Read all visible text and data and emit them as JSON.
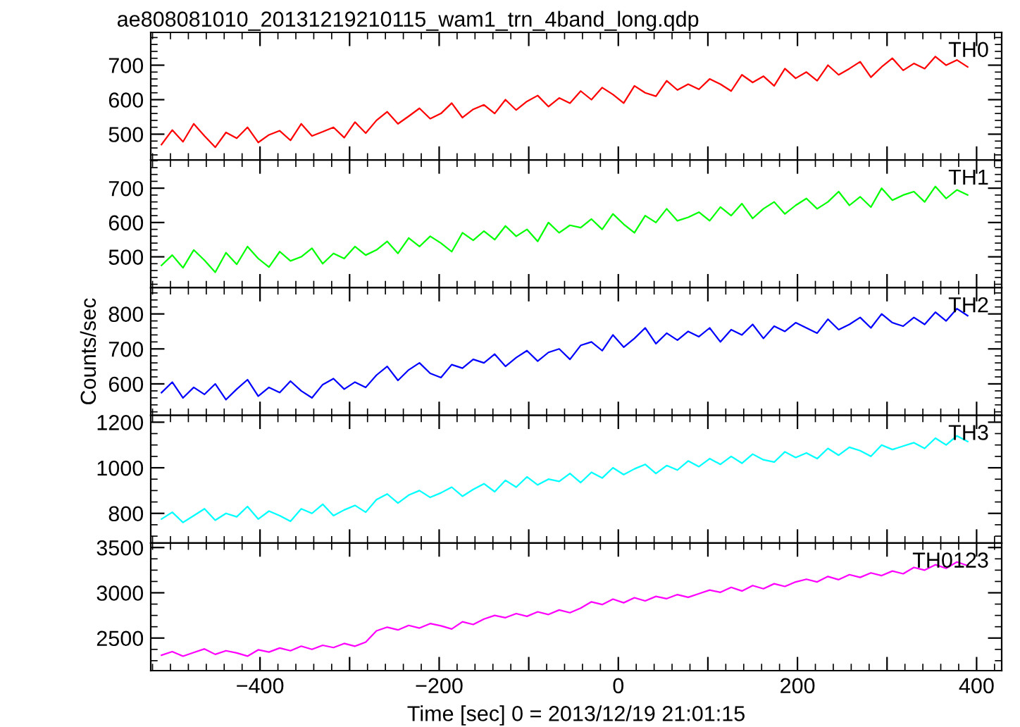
{
  "chart_data": [
    {
      "type": "line",
      "title": "ae808081010_20131219210115_wam1_trn_4band_long.qdp",
      "tick_labels": "y",
      "x": [
        -510,
        -498,
        -486,
        -474,
        -462,
        -450,
        -438,
        -426,
        -414,
        -402,
        -390,
        -378,
        -366,
        -354,
        -342,
        -330,
        -318,
        -306,
        -294,
        -282,
        -270,
        -258,
        -246,
        -234,
        -222,
        -210,
        -198,
        -186,
        -174,
        -162,
        -150,
        -138,
        -126,
        -114,
        -102,
        -90,
        -78,
        -66,
        -54,
        -42,
        -30,
        -18,
        -6,
        6,
        18,
        30,
        42,
        54,
        66,
        78,
        90,
        102,
        114,
        126,
        138,
        150,
        162,
        174,
        186,
        198,
        210,
        222,
        234,
        246,
        258,
        270,
        282,
        294,
        306,
        318,
        330,
        342,
        354,
        366,
        378,
        390
      ],
      "series": [
        {
          "name": "TH0",
          "color": "#ff0000",
          "values": [
            470,
            512,
            478,
            530,
            495,
            462,
            505,
            488,
            520,
            476,
            498,
            510,
            482,
            530,
            495,
            507,
            520,
            490,
            535,
            503,
            540,
            565,
            530,
            552,
            575,
            545,
            560,
            590,
            548,
            572,
            585,
            560,
            600,
            570,
            595,
            612,
            580,
            605,
            590,
            625,
            600,
            635,
            615,
            590,
            640,
            620,
            610,
            655,
            628,
            645,
            630,
            660,
            645,
            625,
            672,
            650,
            668,
            640,
            690,
            662,
            680,
            655,
            700,
            672,
            690,
            710,
            665,
            695,
            720,
            685,
            705,
            690,
            725,
            700,
            715,
            695
          ]
        }
      ],
      "xlim": [
        -522,
        428
      ],
      "xticks": [
        -400,
        {
          "value": -300,
          "label": null
        },
        -200,
        {
          "value": -100,
          "label": null
        },
        0,
        {
          "value": 100,
          "label": null
        },
        200,
        {
          "value": 300,
          "label": null
        },
        400
      ],
      "ylim": [
        425,
        795
      ],
      "yticks": [
        500,
        600,
        700
      ]
    },
    {
      "type": "line",
      "tick_labels": "y",
      "x": [
        -510,
        -498,
        -486,
        -474,
        -462,
        -450,
        -438,
        -426,
        -414,
        -402,
        -390,
        -378,
        -366,
        -354,
        -342,
        -330,
        -318,
        -306,
        -294,
        -282,
        -270,
        -258,
        -246,
        -234,
        -222,
        -210,
        -198,
        -186,
        -174,
        -162,
        -150,
        -138,
        -126,
        -114,
        -102,
        -90,
        -78,
        -66,
        -54,
        -42,
        -30,
        -18,
        -6,
        6,
        18,
        30,
        42,
        54,
        66,
        78,
        90,
        102,
        114,
        126,
        138,
        150,
        162,
        174,
        186,
        198,
        210,
        222,
        234,
        246,
        258,
        270,
        282,
        294,
        306,
        318,
        330,
        342,
        354,
        366,
        378,
        390
      ],
      "series": [
        {
          "name": "TH1",
          "color": "#00ff00",
          "values": [
            475,
            505,
            468,
            520,
            490,
            455,
            512,
            478,
            530,
            495,
            470,
            515,
            488,
            500,
            525,
            480,
            510,
            495,
            530,
            505,
            520,
            545,
            510,
            555,
            530,
            560,
            540,
            515,
            570,
            548,
            575,
            550,
            590,
            560,
            580,
            545,
            600,
            570,
            592,
            585,
            610,
            580,
            625,
            595,
            570,
            620,
            600,
            640,
            605,
            615,
            630,
            605,
            645,
            620,
            655,
            612,
            640,
            660,
            625,
            650,
            670,
            640,
            660,
            690,
            650,
            675,
            645,
            700,
            665,
            680,
            690,
            660,
            705,
            670,
            695,
            680
          ]
        }
      ],
      "xlim": [
        -522,
        428
      ],
      "xticks": [
        -400,
        {
          "value": -300,
          "label": null
        },
        -200,
        {
          "value": -100,
          "label": null
        },
        0,
        {
          "value": 100,
          "label": null
        },
        200,
        {
          "value": 300,
          "label": null
        },
        400
      ],
      "ylim": [
        410,
        782
      ],
      "yticks": [
        500,
        600,
        700
      ]
    },
    {
      "type": "line",
      "tick_labels": "y",
      "ylabel": "Counts/sec",
      "x": [
        -510,
        -498,
        -486,
        -474,
        -462,
        -450,
        -438,
        -426,
        -414,
        -402,
        -390,
        -378,
        -366,
        -354,
        -342,
        -330,
        -318,
        -306,
        -294,
        -282,
        -270,
        -258,
        -246,
        -234,
        -222,
        -210,
        -198,
        -186,
        -174,
        -162,
        -150,
        -138,
        -126,
        -114,
        -102,
        -90,
        -78,
        -66,
        -54,
        -42,
        -30,
        -18,
        -6,
        6,
        18,
        30,
        42,
        54,
        66,
        78,
        90,
        102,
        114,
        126,
        138,
        150,
        162,
        174,
        186,
        198,
        210,
        222,
        234,
        246,
        258,
        270,
        282,
        294,
        306,
        318,
        330,
        342,
        354,
        366,
        378,
        390
      ],
      "series": [
        {
          "name": "TH2",
          "color": "#0000ff",
          "values": [
            575,
            605,
            560,
            590,
            570,
            600,
            555,
            585,
            612,
            565,
            590,
            575,
            608,
            580,
            560,
            598,
            615,
            585,
            605,
            590,
            625,
            650,
            610,
            640,
            660,
            630,
            618,
            655,
            645,
            670,
            660,
            685,
            650,
            675,
            695,
            665,
            690,
            700,
            670,
            710,
            720,
            695,
            740,
            705,
            730,
            760,
            715,
            745,
            725,
            750,
            735,
            760,
            720,
            755,
            740,
            770,
            730,
            765,
            750,
            775,
            760,
            745,
            785,
            755,
            770,
            790,
            760,
            800,
            775,
            765,
            790,
            770,
            805,
            780,
            815,
            795
          ]
        }
      ],
      "xlim": [
        -522,
        428
      ],
      "xticks": [
        -400,
        {
          "value": -300,
          "label": null
        },
        -200,
        {
          "value": -100,
          "label": null
        },
        0,
        {
          "value": 100,
          "label": null
        },
        200,
        {
          "value": 300,
          "label": null
        },
        400
      ],
      "ylim": [
        510,
        875
      ],
      "yticks": [
        600,
        700,
        800
      ]
    },
    {
      "type": "line",
      "tick_labels": "y",
      "x": [
        -510,
        -498,
        -486,
        -474,
        -462,
        -450,
        -438,
        -426,
        -414,
        -402,
        -390,
        -378,
        -366,
        -354,
        -342,
        -330,
        -318,
        -306,
        -294,
        -282,
        -270,
        -258,
        -246,
        -234,
        -222,
        -210,
        -198,
        -186,
        -174,
        -162,
        -150,
        -138,
        -126,
        -114,
        -102,
        -90,
        -78,
        -66,
        -54,
        -42,
        -30,
        -18,
        -6,
        6,
        18,
        30,
        42,
        54,
        66,
        78,
        90,
        102,
        114,
        126,
        138,
        150,
        162,
        174,
        186,
        198,
        210,
        222,
        234,
        246,
        258,
        270,
        282,
        294,
        306,
        318,
        330,
        342,
        354,
        366,
        378,
        390
      ],
      "series": [
        {
          "name": "TH3",
          "color": "#00ffff",
          "values": [
            775,
            805,
            760,
            790,
            820,
            770,
            800,
            785,
            830,
            775,
            810,
            790,
            765,
            820,
            800,
            840,
            790,
            815,
            835,
            805,
            860,
            885,
            845,
            880,
            900,
            870,
            890,
            915,
            875,
            905,
            930,
            895,
            945,
            915,
            960,
            925,
            950,
            940,
            975,
            935,
            980,
            955,
            1000,
            970,
            995,
            1015,
            975,
            1010,
            990,
            1030,
            1005,
            1040,
            1015,
            1050,
            1020,
            1060,
            1035,
            1025,
            1070,
            1045,
            1065,
            1040,
            1085,
            1055,
            1090,
            1075,
            1050,
            1100,
            1080,
            1095,
            1110,
            1085,
            1130,
            1100,
            1140,
            1115
          ]
        }
      ],
      "xlim": [
        -522,
        428
      ],
      "xticks": [
        -400,
        {
          "value": -300,
          "label": null
        },
        -200,
        {
          "value": -100,
          "label": null
        },
        0,
        {
          "value": 100,
          "label": null
        },
        200,
        {
          "value": 300,
          "label": null
        },
        400
      ],
      "ylim": [
        670,
        1230
      ],
      "yticks": [
        800,
        1000,
        1200
      ]
    },
    {
      "type": "line",
      "xlabel": "Time [sec] 0 = 2013/12/19 21:01:15",
      "x": [
        -510,
        -498,
        -486,
        -474,
        -462,
        -450,
        -438,
        -426,
        -414,
        -402,
        -390,
        -378,
        -366,
        -354,
        -342,
        -330,
        -318,
        -306,
        -294,
        -282,
        -270,
        -258,
        -246,
        -234,
        -222,
        -210,
        -198,
        -186,
        -174,
        -162,
        -150,
        -138,
        -126,
        -114,
        -102,
        -90,
        -78,
        -66,
        -54,
        -42,
        -30,
        -18,
        -6,
        6,
        18,
        30,
        42,
        54,
        66,
        78,
        90,
        102,
        114,
        126,
        138,
        150,
        162,
        174,
        186,
        198,
        210,
        222,
        234,
        246,
        258,
        270,
        282,
        294,
        306,
        318,
        330,
        342,
        354,
        366,
        378,
        390
      ],
      "series": [
        {
          "name": "TH0123",
          "color": "#ff00ff",
          "values": [
            2310,
            2350,
            2300,
            2340,
            2380,
            2320,
            2360,
            2335,
            2300,
            2370,
            2345,
            2390,
            2360,
            2410,
            2375,
            2420,
            2395,
            2440,
            2410,
            2455,
            2580,
            2620,
            2590,
            2640,
            2610,
            2660,
            2635,
            2600,
            2680,
            2650,
            2710,
            2750,
            2725,
            2770,
            2740,
            2790,
            2760,
            2810,
            2780,
            2830,
            2900,
            2870,
            2930,
            2890,
            2945,
            2910,
            2960,
            2935,
            2980,
            2950,
            2990,
            3030,
            3005,
            3060,
            3020,
            3080,
            3045,
            3100,
            3070,
            3120,
            3150,
            3120,
            3180,
            3145,
            3200,
            3170,
            3220,
            3190,
            3240,
            3210,
            3280,
            3250,
            3310,
            3270,
            3340,
            3300
          ]
        }
      ],
      "xlim": [
        -522,
        428
      ],
      "xticks": [
        -400,
        {
          "value": -300,
          "label": null
        },
        -200,
        {
          "value": -100,
          "label": null
        },
        0,
        {
          "value": 100,
          "label": null
        },
        200,
        {
          "value": 300,
          "label": null
        },
        400
      ],
      "ylim": [
        2140,
        3550
      ],
      "yticks": [
        2500,
        3000,
        3500
      ]
    }
  ]
}
